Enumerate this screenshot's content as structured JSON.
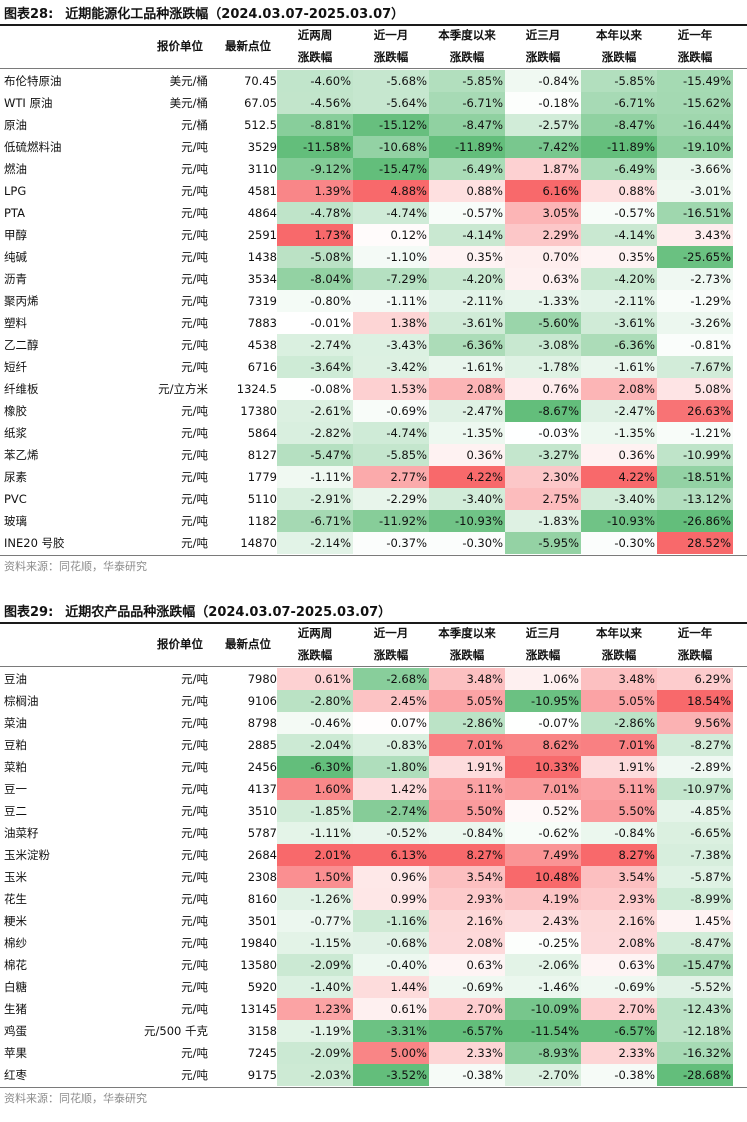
{
  "tables": [
    {
      "label": "图表28:",
      "title": "近期能源化工品种涨跌幅（2024.03.07-2025.03.07）",
      "headers": {
        "unit": "报价单位",
        "price": "最新点位",
        "periods": [
          [
            "近两周",
            "涨跌幅"
          ],
          [
            "近一月",
            "涨跌幅"
          ],
          [
            "本季度以来",
            "涨跌幅"
          ],
          [
            "近三月",
            "涨跌幅"
          ],
          [
            "本年以来",
            "涨跌幅"
          ],
          [
            "近一年",
            "涨跌幅"
          ]
        ]
      },
      "rows": [
        {
          "name": "布伦特原油",
          "unit": "美元/桶",
          "price": "70.45",
          "values": [
            -4.6,
            -5.68,
            -5.85,
            -0.84,
            -5.85,
            -15.49
          ]
        },
        {
          "name": "WTI 原油",
          "unit": "美元/桶",
          "price": "67.05",
          "values": [
            -4.56,
            -5.64,
            -6.71,
            -0.18,
            -6.71,
            -15.62
          ]
        },
        {
          "name": "原油",
          "unit": "元/桶",
          "price": "512.5",
          "values": [
            -8.81,
            -15.12,
            -8.47,
            -2.57,
            -8.47,
            -16.44
          ]
        },
        {
          "name": "低硫燃料油",
          "unit": "元/吨",
          "price": "3529",
          "values": [
            -11.58,
            -10.68,
            -11.89,
            -7.42,
            -11.89,
            -19.1
          ]
        },
        {
          "name": "燃油",
          "unit": "元/吨",
          "price": "3110",
          "values": [
            -9.12,
            -15.47,
            -6.49,
            1.87,
            -6.49,
            -3.66
          ]
        },
        {
          "name": "LPG",
          "unit": "元/吨",
          "price": "4581",
          "values": [
            1.39,
            4.88,
            0.88,
            6.16,
            0.88,
            -3.01
          ]
        },
        {
          "name": "PTA",
          "unit": "元/吨",
          "price": "4864",
          "values": [
            -4.78,
            -4.74,
            -0.57,
            3.05,
            -0.57,
            -16.51
          ]
        },
        {
          "name": "甲醇",
          "unit": "元/吨",
          "price": "2591",
          "values": [
            1.73,
            0.12,
            -4.14,
            2.29,
            -4.14,
            3.43
          ]
        },
        {
          "name": "纯碱",
          "unit": "元/吨",
          "price": "1438",
          "values": [
            -5.08,
            -1.1,
            0.35,
            0.7,
            0.35,
            -25.65
          ]
        },
        {
          "name": "沥青",
          "unit": "元/吨",
          "price": "3534",
          "values": [
            -8.04,
            -7.29,
            -4.2,
            0.63,
            -4.2,
            -2.73
          ]
        },
        {
          "name": "聚丙烯",
          "unit": "元/吨",
          "price": "7319",
          "values": [
            -0.8,
            -1.11,
            -2.11,
            -1.33,
            -2.11,
            -1.29
          ]
        },
        {
          "name": "塑料",
          "unit": "元/吨",
          "price": "7883",
          "values": [
            -0.01,
            1.38,
            -3.61,
            -5.6,
            -3.61,
            -3.26
          ]
        },
        {
          "name": "乙二醇",
          "unit": "元/吨",
          "price": "4538",
          "values": [
            -2.74,
            -3.43,
            -6.36,
            -3.08,
            -6.36,
            -0.81
          ]
        },
        {
          "name": "短纤",
          "unit": "元/吨",
          "price": "6716",
          "values": [
            -3.64,
            -3.42,
            -1.61,
            -1.78,
            -1.61,
            -7.67
          ]
        },
        {
          "name": "纤维板",
          "unit": "元/立方米",
          "price": "1324.5",
          "values": [
            -0.08,
            1.53,
            2.08,
            0.76,
            2.08,
            5.08
          ]
        },
        {
          "name": "橡胶",
          "unit": "元/吨",
          "price": "17380",
          "values": [
            -2.61,
            -0.69,
            -2.47,
            -8.67,
            -2.47,
            26.63
          ]
        },
        {
          "name": "纸浆",
          "unit": "元/吨",
          "price": "5864",
          "values": [
            -2.82,
            -4.74,
            -1.35,
            -0.03,
            -1.35,
            -1.21
          ]
        },
        {
          "name": "苯乙烯",
          "unit": "元/吨",
          "price": "8127",
          "values": [
            -5.47,
            -5.85,
            0.36,
            -3.27,
            0.36,
            -10.99
          ]
        },
        {
          "name": "尿素",
          "unit": "元/吨",
          "price": "1779",
          "values": [
            -1.11,
            2.77,
            4.22,
            2.3,
            4.22,
            -18.51
          ]
        },
        {
          "name": "PVC",
          "unit": "元/吨",
          "price": "5110",
          "values": [
            -2.91,
            -2.29,
            -3.4,
            2.75,
            -3.4,
            -13.12
          ]
        },
        {
          "name": "玻璃",
          "unit": "元/吨",
          "price": "1182",
          "values": [
            -6.71,
            -11.92,
            -10.93,
            -1.83,
            -10.93,
            -26.86
          ]
        },
        {
          "name": "INE20 号胶",
          "unit": "元/吨",
          "price": "14870",
          "values": [
            -2.14,
            -0.37,
            -0.3,
            -5.95,
            -0.3,
            28.52
          ]
        }
      ],
      "source": "资料来源：同花顺，华泰研究"
    },
    {
      "label": "图表29:",
      "title": "近期农产品品种涨跌幅（2024.03.07-2025.03.07）",
      "headers": {
        "unit": "报价单位",
        "price": "最新点位",
        "periods": [
          [
            "近两周",
            "涨跌幅"
          ],
          [
            "近一月",
            "涨跌幅"
          ],
          [
            "本季度以来",
            "涨跌幅"
          ],
          [
            "近三月",
            "涨跌幅"
          ],
          [
            "本年以来",
            "涨跌幅"
          ],
          [
            "近一年",
            "涨跌幅"
          ]
        ]
      },
      "rows": [
        {
          "name": "豆油",
          "unit": "元/吨",
          "price": "7980",
          "values": [
            0.61,
            -2.68,
            3.48,
            1.06,
            3.48,
            6.29
          ]
        },
        {
          "name": "棕榈油",
          "unit": "元/吨",
          "price": "9106",
          "values": [
            -2.8,
            2.45,
            5.05,
            -10.95,
            5.05,
            18.54
          ]
        },
        {
          "name": "菜油",
          "unit": "元/吨",
          "price": "8798",
          "values": [
            -0.46,
            0.07,
            -2.86,
            -0.07,
            -2.86,
            9.56
          ]
        },
        {
          "name": "豆粕",
          "unit": "元/吨",
          "price": "2885",
          "values": [
            -2.04,
            -0.83,
            7.01,
            8.62,
            7.01,
            -8.27
          ]
        },
        {
          "name": "菜粕",
          "unit": "元/吨",
          "price": "2456",
          "values": [
            -6.3,
            -1.8,
            1.91,
            10.33,
            1.91,
            -2.89
          ]
        },
        {
          "name": "豆一",
          "unit": "元/吨",
          "price": "4137",
          "values": [
            1.6,
            1.42,
            5.11,
            7.01,
            5.11,
            -10.97
          ]
        },
        {
          "name": "豆二",
          "unit": "元/吨",
          "price": "3510",
          "values": [
            -1.85,
            -2.74,
            5.5,
            0.52,
            5.5,
            -4.85
          ]
        },
        {
          "name": "油菜籽",
          "unit": "元/吨",
          "price": "5787",
          "values": [
            -1.11,
            -0.52,
            -0.84,
            -0.62,
            -0.84,
            -6.65
          ]
        },
        {
          "name": "玉米淀粉",
          "unit": "元/吨",
          "price": "2684",
          "values": [
            2.01,
            6.13,
            8.27,
            7.49,
            8.27,
            -7.38
          ]
        },
        {
          "name": "玉米",
          "unit": "元/吨",
          "price": "2308",
          "values": [
            1.5,
            0.96,
            3.54,
            10.48,
            3.54,
            -5.87
          ]
        },
        {
          "name": "花生",
          "unit": "元/吨",
          "price": "8160",
          "values": [
            -1.26,
            0.99,
            2.93,
            4.19,
            2.93,
            -8.99
          ]
        },
        {
          "name": "粳米",
          "unit": "元/吨",
          "price": "3501",
          "values": [
            -0.77,
            -1.16,
            2.16,
            2.43,
            2.16,
            1.45
          ]
        },
        {
          "name": "棉纱",
          "unit": "元/吨",
          "price": "19840",
          "values": [
            -1.15,
            -0.68,
            2.08,
            -0.25,
            2.08,
            -8.47
          ]
        },
        {
          "name": "棉花",
          "unit": "元/吨",
          "price": "13580",
          "values": [
            -2.09,
            -0.4,
            0.63,
            -2.06,
            0.63,
            -15.47
          ]
        },
        {
          "name": "白糖",
          "unit": "元/吨",
          "price": "5920",
          "values": [
            -1.4,
            1.44,
            -0.69,
            -1.46,
            -0.69,
            -5.52
          ]
        },
        {
          "name": "生猪",
          "unit": "元/吨",
          "price": "13145",
          "values": [
            1.23,
            0.61,
            2.7,
            -10.09,
            2.7,
            -12.43
          ]
        },
        {
          "name": "鸡蛋",
          "unit": "元/500 千克",
          "price": "3158",
          "values": [
            -1.19,
            -3.31,
            -6.57,
            -11.54,
            -6.57,
            -12.18
          ]
        },
        {
          "name": "苹果",
          "unit": "元/吨",
          "price": "7245",
          "values": [
            -2.09,
            5.0,
            2.33,
            -8.93,
            2.33,
            -16.32
          ]
        },
        {
          "name": "红枣",
          "unit": "元/吨",
          "price": "9175",
          "values": [
            -2.03,
            -3.52,
            -0.38,
            -2.7,
            -0.38,
            -28.68
          ]
        }
      ],
      "source": "资料来源：同花顺，华泰研究"
    }
  ],
  "colors": {
    "positive": "#f8696b",
    "negative": "#63be7b",
    "neutral": "#ffffff"
  }
}
